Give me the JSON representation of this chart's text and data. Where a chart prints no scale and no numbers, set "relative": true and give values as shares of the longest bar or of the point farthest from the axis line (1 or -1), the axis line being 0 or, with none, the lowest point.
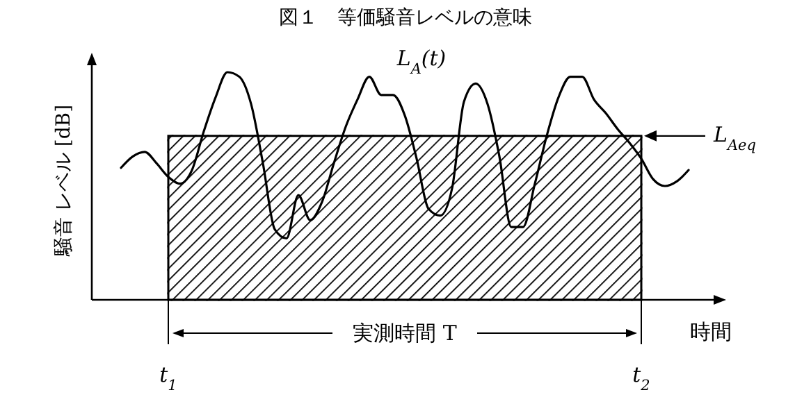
{
  "chart_data": {
    "type": "line",
    "title": "図１　等価騒音レベルの意味",
    "xlabel": "時間",
    "ylabel": "騒音 レベル [dB]",
    "relative": true,
    "annotations": [
      "実測時間 T"
    ],
    "categories": [
      null,
      null,
      null,
      null,
      "t$_{1}$",
      null,
      null,
      null,
      null,
      null,
      null,
      null,
      null,
      null,
      null,
      null,
      null,
      null,
      null,
      null,
      null,
      null,
      null,
      null,
      null,
      null,
      null,
      null,
      null,
      null,
      null,
      null,
      null,
      null,
      null,
      null,
      null,
      null,
      null,
      null,
      null,
      null,
      null,
      null,
      "t$_{2}$",
      null,
      null,
      null,
      null
    ],
    "series": [
      {
        "name": "L$_{A}$(t)",
        "color": "#000000",
        "values": [
          0.58,
          0.63,
          0.65,
          0.6,
          0.54,
          0.51,
          0.57,
          0.74,
          0.89,
          1.0,
          0.98,
          0.86,
          0.6,
          0.31,
          0.27,
          0.46,
          0.35,
          0.43,
          0.6,
          0.76,
          0.88,
          0.98,
          0.9,
          0.9,
          0.81,
          0.62,
          0.4,
          0.37,
          0.49,
          0.87,
          0.95,
          0.86,
          0.63,
          0.32,
          0.32,
          0.51,
          0.72,
          0.89,
          0.98,
          0.98,
          0.88,
          0.82,
          0.75,
          0.69,
          0.62,
          0.53,
          0.5,
          0.52,
          0.57
        ]
      },
      {
        "type": "area",
        "name": "L$_{Aeq}$",
        "color": "#000000",
        "values": [
          null,
          null,
          null,
          null,
          0.72,
          0.72,
          0.72,
          0.72,
          0.72,
          0.72,
          0.72,
          0.72,
          0.72,
          0.72,
          0.72,
          0.72,
          0.72,
          0.72,
          0.72,
          0.72,
          0.72,
          0.72,
          0.72,
          0.72,
          0.72,
          0.72,
          0.72,
          0.72,
          0.72,
          0.72,
          0.72,
          0.72,
          0.72,
          0.72,
          0.72,
          0.72,
          0.72,
          0.72,
          0.72,
          0.72,
          0.72,
          0.72,
          0.72,
          0.72,
          0.72,
          null,
          null,
          null,
          null
        ]
      }
    ]
  }
}
